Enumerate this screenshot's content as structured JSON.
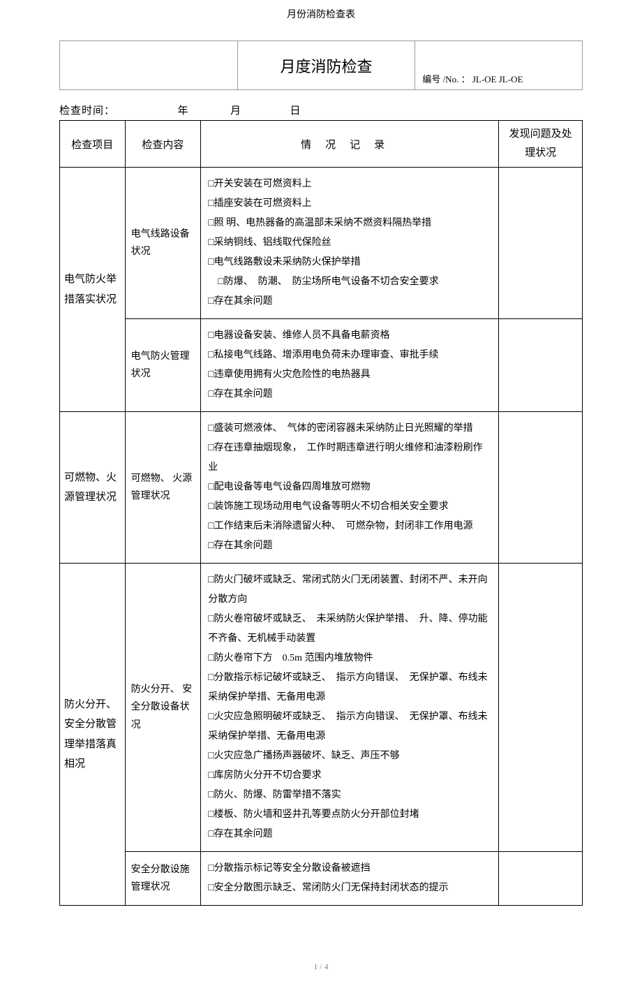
{
  "doc_title": "月份消防检查表",
  "header": {
    "center_title": "月度消防检查",
    "doc_no_label": "编号 /No. ：",
    "doc_no_value": "JL-OE JL-OE"
  },
  "inspect_time": {
    "label": "检查时间：",
    "year": "年",
    "month": "月",
    "day": "日"
  },
  "table_headers": {
    "item": "检查项目",
    "content": "检查内容",
    "record": "情况记录",
    "issue": "发现问题及处理状况"
  },
  "rows": [
    {
      "item": "电气防火举措落实状况",
      "sub": [
        {
          "content": "电气线路设备状况",
          "records": [
            "□开关安装在可燃资料上",
            "□插座安装在可燃资料上",
            "□照 明、电热器备的高温部未采纳不燃资料隔热举措",
            "□采纳铜线、铝线取代保险丝",
            "□电气线路敷设未采纳防火保护举措",
            "　□防爆、　防潮、　防尘场所电气设备不切合安全要求",
            "□存在其余问题"
          ]
        },
        {
          "content": "电气防火管理状况",
          "records": [
            "□电器设备安装、维修人员不具备电薪资格",
            "□私接电气线路、增添用电负荷未办理审查、审批手续",
            "□违章使用拥有火灾危险性的电热器具",
            "□存在其余问题"
          ]
        }
      ]
    },
    {
      "item": "可燃物、火源管理状况",
      "sub": [
        {
          "content": "可燃物、 火源管理状况",
          "records": [
            "□盛装可燃液体、　气体的密闭容器未采纳防止日光照耀的举措",
            "□存在违章抽烟现象，　工作时期违章进行明火维修和油漆粉刷作业",
            "□配电设备等电气设备四周堆放可燃物",
            "□装饰施工现场动用电气设备等明火不切合相关安全要求",
            "□工作结束后未消除遗留火种、　可燃杂物，封闭非工作用电源",
            "□存在其余问题"
          ]
        }
      ]
    },
    {
      "item": "防火分开、安全分散管理举措落真相况",
      "sub": [
        {
          "content": "防火分开、 安全分散设备状况",
          "records": [
            "□防火门破坏或缺乏、常闭式防火门无闭装置、封闭不严、未开向分散方向",
            "□防火卷帘破坏或缺乏、　未采纳防火保护举措、　升、降、停功能不齐备、无机械手动装置",
            "□防火卷帘下方　0.5m 范围内堆放物件",
            "□分散指示标记破坏或缺乏、　指示方向错误、　无保护罩、布线未采纳保护举措、无备用电源",
            "□火灾应急照明破坏或缺乏、　指示方向错误、　无保护罩、布线未采纳保护举措、无备用电源",
            "□火灾应急广播扬声器破坏、缺乏、声压不够",
            "□库房防火分开不切合要求",
            "□防火、防爆、防雷举措不落实",
            "□楼板、防火墙和竖井孔等要点防火分开部位封堵",
            "□存在其余问题"
          ]
        },
        {
          "content": "安全分散设施管理状况",
          "records": [
            "□分散指示标记等安全分散设备被遮挡",
            "□安全分散图示缺乏、常闭防火门无保持封闭状态的提示"
          ]
        }
      ]
    }
  ],
  "footer": {
    "page": "1 / 4"
  }
}
